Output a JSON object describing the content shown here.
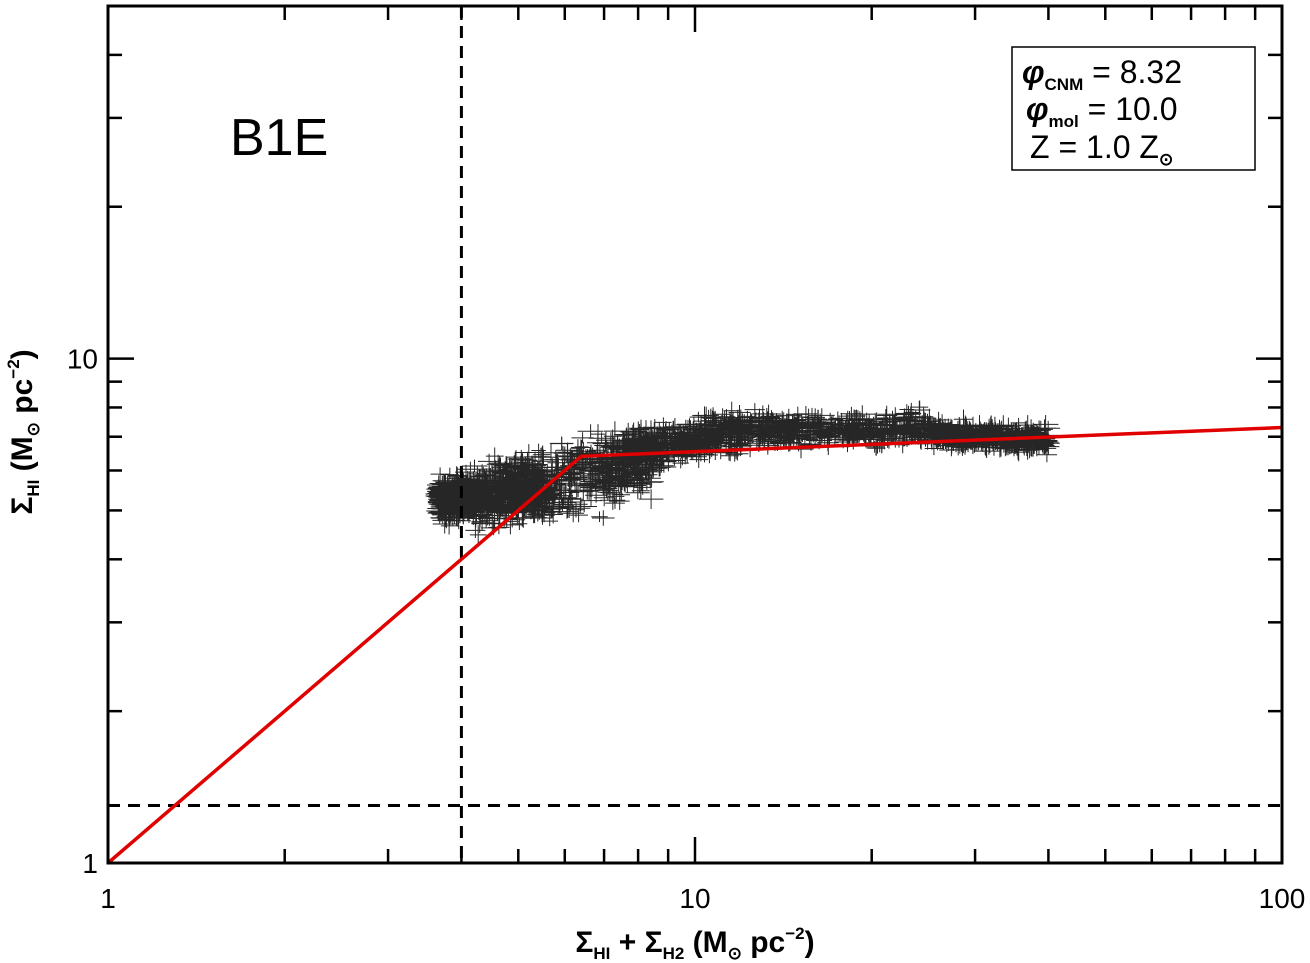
{
  "chart_data": {
    "type": "scatter",
    "panel_label": "B1E",
    "x_scale": "log",
    "y_scale": "log",
    "xlim": [
      1,
      100
    ],
    "ylim": [
      1,
      50
    ],
    "x_ticks": [
      {
        "value": 1,
        "label": "1"
      },
      {
        "value": 10,
        "label": "10"
      },
      {
        "value": 100,
        "label": "100"
      }
    ],
    "y_ticks": [
      {
        "value": 1,
        "label": "1"
      },
      {
        "value": 10,
        "label": "10"
      }
    ],
    "xlabel": {
      "sigma": "Σ",
      "sub1": "HI",
      "plus": " + ",
      "sigma2": "Σ",
      "sub2": "H2",
      "units_open": " (M",
      "sun": "⊙",
      "units_mid": " pc",
      "exp": "−2",
      "units_close": ")"
    },
    "ylabel": {
      "sigma": "Σ",
      "sub1": "HI",
      "units_open": " (M",
      "sun": "⊙",
      "units_mid": " pc",
      "exp": "−2",
      "units_close": ")"
    },
    "legend": {
      "position": "top-right",
      "rows": [
        {
          "sym": "φ",
          "sub": "CNM",
          "rest": " = 8.32"
        },
        {
          "sym": "φ",
          "sub": "mol",
          "rest": " = 10.0"
        },
        {
          "sym": "Z",
          "sub": "",
          "rest": " = 1.0 Z",
          "sun": "⊙"
        }
      ]
    },
    "reference_lines": {
      "vertical_x": 4.0,
      "horizontal_y": 1.3
    },
    "model_line": {
      "color": "#e00000",
      "points": [
        [
          1,
          1
        ],
        [
          6.4,
          6.4
        ],
        [
          100,
          7.3
        ]
      ]
    },
    "data_cloud": {
      "color": "#000000",
      "segments": [
        {
          "x_from": 3.65,
          "x_to": 4.2,
          "y_from": 5.2,
          "y_to": 5.35,
          "spread": 0.05
        },
        {
          "x_from": 4.2,
          "x_to": 5.5,
          "y_from": 5.3,
          "y_to": 5.6,
          "spread": 0.07
        },
        {
          "x_from": 5.0,
          "x_to": 8.5,
          "y_from": 5.5,
          "y_to": 6.3,
          "spread": 0.08
        },
        {
          "x_from": 7.5,
          "x_to": 12.0,
          "y_from": 6.5,
          "y_to": 7.2,
          "spread": 0.05
        },
        {
          "x_from": 12.0,
          "x_to": 25.0,
          "y_from": 7.2,
          "y_to": 7.3,
          "spread": 0.04
        },
        {
          "x_from": 25.0,
          "x_to": 40.0,
          "y_from": 7.1,
          "y_to": 6.9,
          "spread": 0.03
        }
      ]
    }
  }
}
